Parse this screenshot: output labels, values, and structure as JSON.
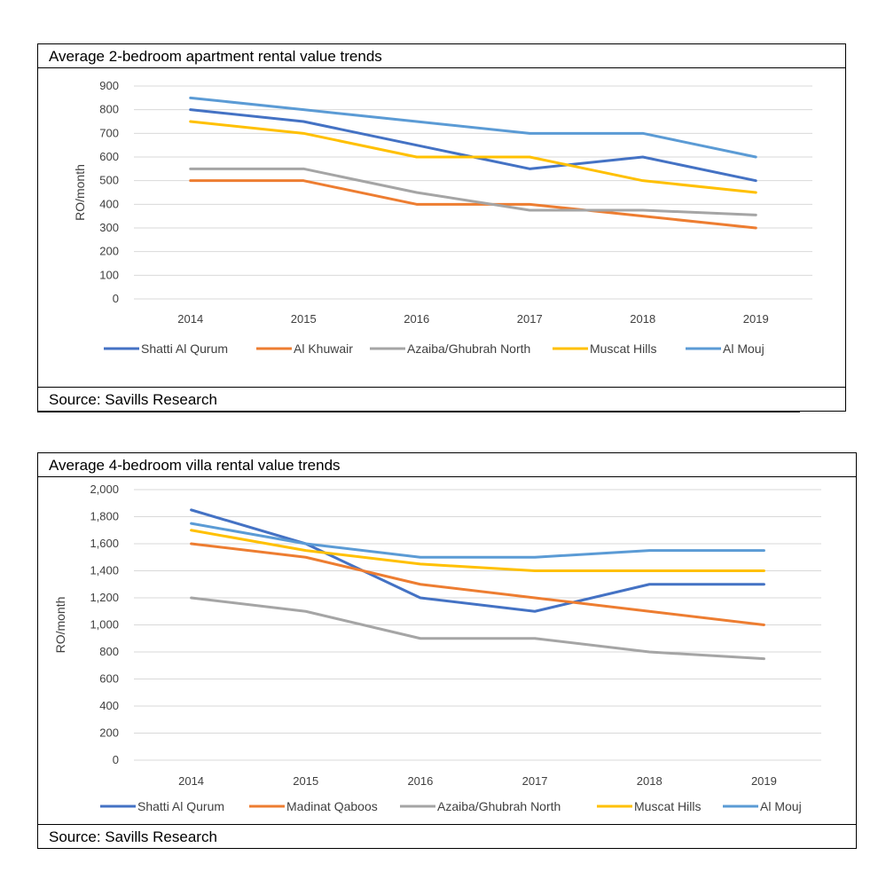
{
  "chart_data": [
    {
      "type": "line",
      "title": "Average 2-bedroom apartment rental value trends",
      "source": "Source: Savills Research",
      "ylabel": "RO/month",
      "xlabel": "",
      "x": [
        "2014",
        "2015",
        "2016",
        "2017",
        "2018",
        "2019"
      ],
      "ylim": [
        0,
        900
      ],
      "yticks": [
        "0",
        "100",
        "200",
        "300",
        "400",
        "500",
        "600",
        "700",
        "800",
        "900"
      ],
      "ytick_values": [
        0,
        100,
        200,
        300,
        400,
        500,
        600,
        700,
        800,
        900
      ],
      "grid": true,
      "legend_position": "bottom",
      "series": [
        {
          "name": "Shatti Al Qurum",
          "color": "#4472C4",
          "values": [
            800,
            750,
            650,
            550,
            600,
            500
          ]
        },
        {
          "name": "Al Khuwair",
          "color": "#ED7D31",
          "values": [
            500,
            500,
            400,
            400,
            350,
            300
          ]
        },
        {
          "name": "Azaiba/Ghubrah North",
          "color": "#A5A5A5",
          "values": [
            550,
            550,
            450,
            375,
            375,
            355
          ]
        },
        {
          "name": "Muscat Hills",
          "color": "#FFC000",
          "values": [
            750,
            700,
            600,
            600,
            500,
            450
          ]
        },
        {
          "name": "Al Mouj",
          "color": "#5B9BD5",
          "values": [
            850,
            800,
            750,
            700,
            700,
            600
          ]
        }
      ]
    },
    {
      "type": "line",
      "title": "Average 4-bedroom villa rental value trends",
      "source": "Source: Savills Research",
      "ylabel": "RO/month",
      "xlabel": "",
      "x": [
        "2014",
        "2015",
        "2016",
        "2017",
        "2018",
        "2019"
      ],
      "ylim": [
        0,
        2000
      ],
      "yticks": [
        "0",
        "200",
        "400",
        "600",
        "800",
        "1,000",
        "1,200",
        "1,400",
        "1,600",
        "1,800",
        "2,000"
      ],
      "ytick_values": [
        0,
        200,
        400,
        600,
        800,
        1000,
        1200,
        1400,
        1600,
        1800,
        2000
      ],
      "grid": true,
      "legend_position": "bottom",
      "series": [
        {
          "name": "Shatti Al Qurum",
          "color": "#4472C4",
          "values": [
            1850,
            1600,
            1200,
            1100,
            1300,
            1300
          ]
        },
        {
          "name": "Madinat Qaboos",
          "color": "#ED7D31",
          "values": [
            1600,
            1500,
            1300,
            1200,
            1100,
            1000
          ]
        },
        {
          "name": "Azaiba/Ghubrah North",
          "color": "#A5A5A5",
          "values": [
            1200,
            1100,
            900,
            900,
            800,
            750
          ]
        },
        {
          "name": "Muscat Hills",
          "color": "#FFC000",
          "values": [
            1700,
            1550,
            1450,
            1400,
            1400,
            1400
          ]
        },
        {
          "name": "Al Mouj",
          "color": "#5B9BD5",
          "values": [
            1750,
            1600,
            1500,
            1500,
            1550,
            1550
          ]
        }
      ]
    }
  ]
}
